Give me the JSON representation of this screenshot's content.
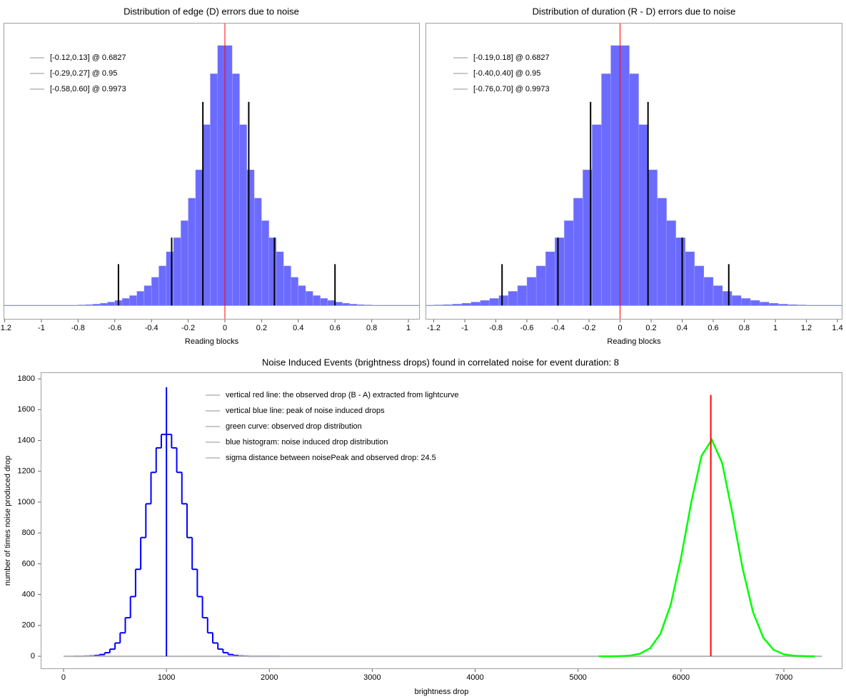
{
  "chart_data": [
    {
      "type": "histogram",
      "title": "Distribution of edge (D) errors due to noise",
      "x_label": "Reading blocks",
      "xlim": [
        -1.206,
        1.062
      ],
      "xticks": [
        -1.2,
        -1,
        -0.8,
        -0.6,
        -0.4,
        -0.2,
        0,
        0.2,
        0.4,
        0.6,
        0.8,
        1
      ],
      "ylim": [
        -5,
        100
      ],
      "histtype": "bar",
      "color": "#6b6bff",
      "bins": [
        -0.8,
        -0.76,
        -0.72,
        -0.68,
        -0.64,
        -0.6,
        -0.56,
        -0.52,
        -0.48,
        -0.44,
        -0.4,
        -0.36,
        -0.32,
        -0.28,
        -0.24,
        -0.2,
        -0.16,
        -0.12,
        -0.08,
        -0.04,
        0,
        0.04,
        0.08,
        0.12,
        0.16,
        0.2,
        0.24,
        0.28,
        0.32,
        0.36,
        0.4,
        0.44,
        0.48,
        0.52,
        0.56,
        0.6,
        0.64,
        0.68,
        0.72,
        0.76,
        0.8
      ],
      "values": [
        0.2,
        0.3,
        0.5,
        0.8,
        1.2,
        1.8,
        2.5,
        3.5,
        5,
        7,
        10,
        14,
        19,
        24,
        30,
        38,
        48,
        64,
        82,
        92,
        92,
        82,
        64,
        48,
        38,
        30,
        24,
        19,
        14,
        10,
        7,
        5,
        3.5,
        2.5,
        1.8,
        1.2,
        0.8,
        0.5,
        0.3,
        0.2
      ],
      "markers": [
        {
          "x": -0.58,
          "height": 14.6
        },
        {
          "x": -0.29,
          "height": 24
        },
        {
          "x": -0.12,
          "height": 72
        },
        {
          "x": 0.13,
          "height": 72
        },
        {
          "x": 0.27,
          "height": 24
        },
        {
          "x": 0.6,
          "height": 14.6
        }
      ],
      "vlines": [
        {
          "x": 0,
          "color": "#ff0000"
        }
      ],
      "legend": [
        "[-0.12,0.13] @ 0.6827",
        "[-0.29,0.27] @ 0.95",
        "[-0.58,0.60] @ 0.9973"
      ]
    },
    {
      "type": "histogram",
      "title": "Distribution of duration (R - D) errors due to noise",
      "x_label": "Reading blocks",
      "xlim": [
        -1.253,
        1.432
      ],
      "xticks": [
        -1.2,
        -1,
        -0.8,
        -0.6,
        -0.4,
        -0.2,
        0,
        0.2,
        0.4,
        0.6,
        0.8,
        1,
        1.2,
        1.4
      ],
      "ylim": [
        -5,
        100
      ],
      "histtype": "bar",
      "color": "#6b6bff",
      "bins": [
        -1.2,
        -1.14,
        -1.08,
        -1.02,
        -0.96,
        -0.9,
        -0.84,
        -0.78,
        -0.72,
        -0.66,
        -0.6,
        -0.54,
        -0.48,
        -0.42,
        -0.36,
        -0.3,
        -0.24,
        -0.18,
        -0.12,
        -0.06,
        0,
        0.06,
        0.12,
        0.18,
        0.24,
        0.3,
        0.36,
        0.42,
        0.48,
        0.54,
        0.6,
        0.66,
        0.72,
        0.78,
        0.84,
        0.9,
        0.96,
        1.02,
        1.08,
        1.14,
        1.2
      ],
      "values": [
        0.2,
        0.3,
        0.5,
        0.8,
        1.2,
        1.8,
        2.5,
        3.5,
        5,
        7,
        10,
        14,
        19,
        24,
        30,
        38,
        48,
        64,
        82,
        92,
        92,
        82,
        64,
        48,
        38,
        30,
        24,
        19,
        14,
        10,
        7,
        5,
        3.5,
        2.5,
        1.8,
        1.2,
        0.8,
        0.5,
        0.3,
        0.2
      ],
      "markers": [
        {
          "x": -0.76,
          "height": 14.6
        },
        {
          "x": -0.4,
          "height": 24
        },
        {
          "x": -0.19,
          "height": 72
        },
        {
          "x": 0.18,
          "height": 72
        },
        {
          "x": 0.4,
          "height": 24
        },
        {
          "x": 0.7,
          "height": 14.6
        }
      ],
      "vlines": [
        {
          "x": 0,
          "color": "#ff0000"
        }
      ],
      "legend": [
        "[-0.19,0.18] @ 0.6827",
        "[-0.40,0.40] @ 0.95",
        "[-0.76,0.70] @ 0.9973"
      ]
    },
    {
      "type": "histogram",
      "title": "Noise Induced Events (brightness drops) found in correlated noise for event duration: 8",
      "x_label": "brightness drop",
      "y_label": "number of times noise produced drop",
      "xlim": [
        -222,
        7569
      ],
      "xticks": [
        0,
        1000,
        2000,
        3000,
        4000,
        5000,
        6000,
        7000
      ],
      "ylim": [
        -83,
        1842
      ],
      "yticks": [
        0,
        200,
        400,
        600,
        800,
        1000,
        1200,
        1400,
        1600,
        1800
      ],
      "histtype": "step",
      "color": "#0000ff",
      "bins": [
        100,
        150,
        200,
        250,
        300,
        350,
        400,
        450,
        500,
        550,
        600,
        650,
        700,
        750,
        800,
        850,
        900,
        950,
        1000,
        1050,
        1100,
        1150,
        1200,
        1250,
        1300,
        1350,
        1400,
        1450,
        1500,
        1550,
        1600,
        1650,
        1700,
        1750,
        1800,
        1850,
        1900,
        1950,
        2000,
        2050,
        2100
      ],
      "values": [
        0,
        0,
        1,
        2,
        5,
        11,
        23,
        46,
        86,
        152,
        250,
        387,
        564,
        770,
        989,
        1193,
        1352,
        1439,
        1439,
        1352,
        1193,
        989,
        770,
        564,
        387,
        250,
        152,
        86,
        46,
        23,
        11,
        5,
        2,
        1,
        0,
        0,
        0,
        0,
        0,
        0
      ],
      "series": [
        {
          "color": "#00ff00",
          "x": [
            5200,
            5300,
            5400,
            5500,
            5600,
            5700,
            5800,
            5900,
            6000,
            6100,
            6200,
            6300,
            6400,
            6500,
            6600,
            6700,
            6800,
            6900,
            7000,
            7100,
            7200,
            7300
          ],
          "values": [
            0,
            0,
            1,
            4,
            16,
            52,
            145,
            333,
            636,
            999,
            1301,
            1404,
            1254,
            926,
            567,
            287,
            120,
            42,
            12,
            3,
            1,
            0
          ]
        }
      ],
      "vlines": [
        {
          "x": 1000,
          "top": 1745,
          "color": "#0000ff"
        },
        {
          "x": 6290,
          "top": 1695,
          "color": "#ff0000"
        }
      ],
      "hline": {
        "y": 0,
        "x": [
          0,
          7370
        ],
        "color": "#b4b4b4"
      },
      "legend": [
        "vertical red line: the observed drop (B - A) extracted from lightcurve",
        "vertical blue line: peak of noise induced drops",
        "green curve: observed drop distribution",
        "blue histogram: noise induced drop distribution",
        "sigma distance between noisePeak and observed drop: 24.5"
      ]
    }
  ]
}
